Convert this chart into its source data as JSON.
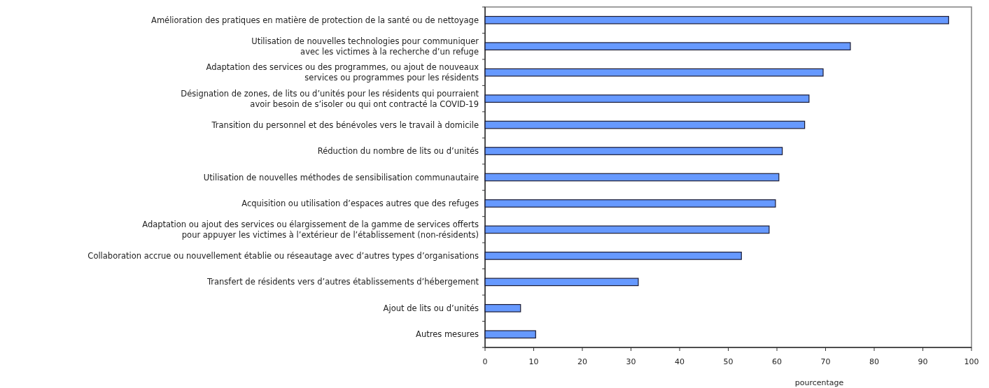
{
  "chart_data": {
    "type": "bar",
    "orientation": "horizontal",
    "xlabel": "pourcentage",
    "categories": [
      "Amélioration des pratiques en matière de protection de la santé ou de nettoyage",
      "Utilisation de nouvelles technologies pour communiquer\navec les victimes à la recherche d’un refuge",
      "Adaptation des services ou des programmes, ou ajout de nouveaux\nservices ou programmes pour les résidents",
      "Désignation de zones, de lits ou d’unités pour les résidents qui pourraient\navoir besoin de s’isoler ou qui ont contracté la COVID-19",
      "Transition du personnel et des bénévoles vers le travail à domicile",
      "Réduction du nombre de lits ou d’unités",
      "Utilisation de nouvelles méthodes de sensibilisation communautaire",
      "Acquisition ou utilisation d’espaces autres que des refuges",
      "Adaptation ou ajout des services ou élargissement de la gamme de services offerts\npour appuyer les victimes à l’extérieur de l’établissement (non-résidents)",
      "Collaboration accrue ou nouvellement établie ou réseautage avec d’autres types d’organisations",
      "Transfert de résidents vers d’autres établissements d’hébergement",
      "Ajout de lits ou d’unités",
      "Autres mesures"
    ],
    "values": [
      95.3,
      75.1,
      69.5,
      66.6,
      65.7,
      61.1,
      60.4,
      59.7,
      58.4,
      52.7,
      31.5,
      7.3,
      10.4
    ],
    "color": "#6699ff",
    "xlim": [
      0,
      100
    ],
    "xticks": [
      0,
      10,
      20,
      30,
      40,
      50,
      60,
      70,
      80,
      90,
      100
    ],
    "grid": false
  }
}
